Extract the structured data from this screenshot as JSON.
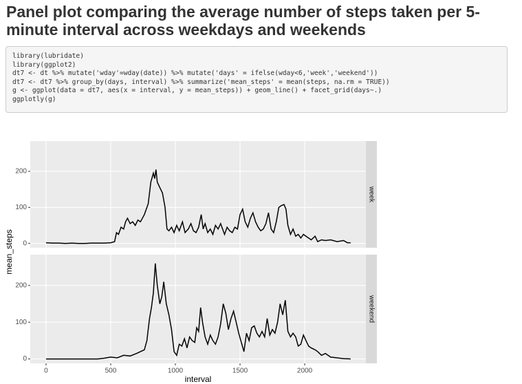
{
  "header": {
    "title": "Panel plot comparing the average number of steps taken per 5-minute interval across weekdays and weekends"
  },
  "code": {
    "lines": [
      "library(lubridate)",
      "library(ggplot2)",
      "dt7 <- dt %>% mutate('wday'=wday(date)) %>% mutate('days' = ifelse(wday<6,'week','weekend'))",
      "dt7 <- dt7 %>% group_by(days, interval) %>% summarize('mean_steps' = mean(steps, na.rm = TRUE))",
      "g <- ggplot(data = dt7, aes(x = interval, y = mean_steps)) + geom_line() + facet_grid(days~.)",
      "ggplotly(g)"
    ]
  },
  "chart_data": {
    "type": "line",
    "x_label": "interval",
    "y_label": "mean_steps",
    "color": "#000000",
    "grid": true,
    "xlim": [
      -122,
      2473
    ],
    "xticks": [
      0,
      500,
      1000,
      1500,
      2000
    ],
    "ylim": [
      -12,
      284
    ],
    "yticks": [
      0,
      100,
      200
    ],
    "facets": [
      {
        "label": "week",
        "x": [
          0,
          50,
          100,
          150,
          200,
          250,
          300,
          350,
          400,
          450,
          500,
          530,
          545,
          560,
          580,
          600,
          615,
          630,
          650,
          670,
          690,
          710,
          730,
          760,
          790,
          810,
          830,
          840,
          850,
          860,
          880,
          900,
          920,
          935,
          950,
          970,
          990,
          1010,
          1030,
          1055,
          1075,
          1100,
          1120,
          1140,
          1160,
          1180,
          1200,
          1215,
          1230,
          1250,
          1270,
          1290,
          1310,
          1330,
          1350,
          1380,
          1400,
          1420,
          1440,
          1460,
          1480,
          1500,
          1520,
          1540,
          1560,
          1580,
          1600,
          1620,
          1640,
          1660,
          1680,
          1700,
          1720,
          1740,
          1760,
          1780,
          1800,
          1820,
          1840,
          1855,
          1870,
          1890,
          1910,
          1930,
          1950,
          1970,
          1990,
          2010,
          2030,
          2050,
          2080,
          2100,
          2130,
          2160,
          2200,
          2250,
          2300,
          2330,
          2355
        ],
        "values": [
          2,
          1,
          1,
          0,
          1,
          0,
          0,
          1,
          1,
          1,
          2,
          5,
          30,
          25,
          45,
          40,
          60,
          70,
          55,
          60,
          50,
          65,
          60,
          80,
          110,
          170,
          195,
          180,
          205,
          170,
          155,
          140,
          100,
          40,
          35,
          45,
          30,
          50,
          35,
          60,
          30,
          40,
          55,
          35,
          30,
          45,
          80,
          40,
          55,
          30,
          40,
          25,
          50,
          40,
          55,
          25,
          45,
          35,
          30,
          45,
          40,
          80,
          95,
          60,
          45,
          70,
          85,
          60,
          45,
          35,
          40,
          55,
          85,
          40,
          30,
          60,
          100,
          105,
          108,
          95,
          50,
          25,
          40,
          20,
          25,
          15,
          25,
          20,
          15,
          10,
          20,
          5,
          10,
          8,
          10,
          5,
          8,
          2,
          2
        ]
      },
      {
        "label": "weekend",
        "x": [
          0,
          100,
          200,
          300,
          400,
          450,
          500,
          550,
          600,
          650,
          700,
          730,
          760,
          780,
          800,
          815,
          830,
          845,
          860,
          880,
          895,
          910,
          930,
          950,
          970,
          990,
          1010,
          1030,
          1050,
          1070,
          1090,
          1110,
          1130,
          1150,
          1165,
          1180,
          1195,
          1210,
          1230,
          1250,
          1270,
          1290,
          1310,
          1330,
          1350,
          1370,
          1390,
          1410,
          1430,
          1450,
          1470,
          1490,
          1510,
          1530,
          1550,
          1570,
          1590,
          1610,
          1630,
          1650,
          1670,
          1690,
          1710,
          1730,
          1750,
          1770,
          1790,
          1810,
          1830,
          1850,
          1870,
          1890,
          1910,
          1930,
          1950,
          1970,
          1990,
          2010,
          2030,
          2050,
          2080,
          2100,
          2130,
          2160,
          2200,
          2250,
          2300,
          2355
        ],
        "values": [
          0,
          0,
          0,
          0,
          0,
          2,
          5,
          3,
          10,
          8,
          15,
          20,
          25,
          50,
          110,
          140,
          180,
          260,
          200,
          150,
          170,
          210,
          150,
          120,
          80,
          20,
          10,
          40,
          35,
          55,
          30,
          60,
          50,
          45,
          85,
          75,
          140,
          100,
          60,
          40,
          65,
          50,
          40,
          60,
          95,
          150,
          125,
          80,
          110,
          130,
          100,
          70,
          45,
          20,
          70,
          50,
          85,
          90,
          70,
          60,
          75,
          60,
          110,
          65,
          80,
          70,
          100,
          150,
          120,
          160,
          75,
          60,
          70,
          60,
          35,
          40,
          65,
          50,
          35,
          30,
          25,
          20,
          10,
          15,
          5,
          3,
          1,
          0
        ]
      }
    ]
  }
}
